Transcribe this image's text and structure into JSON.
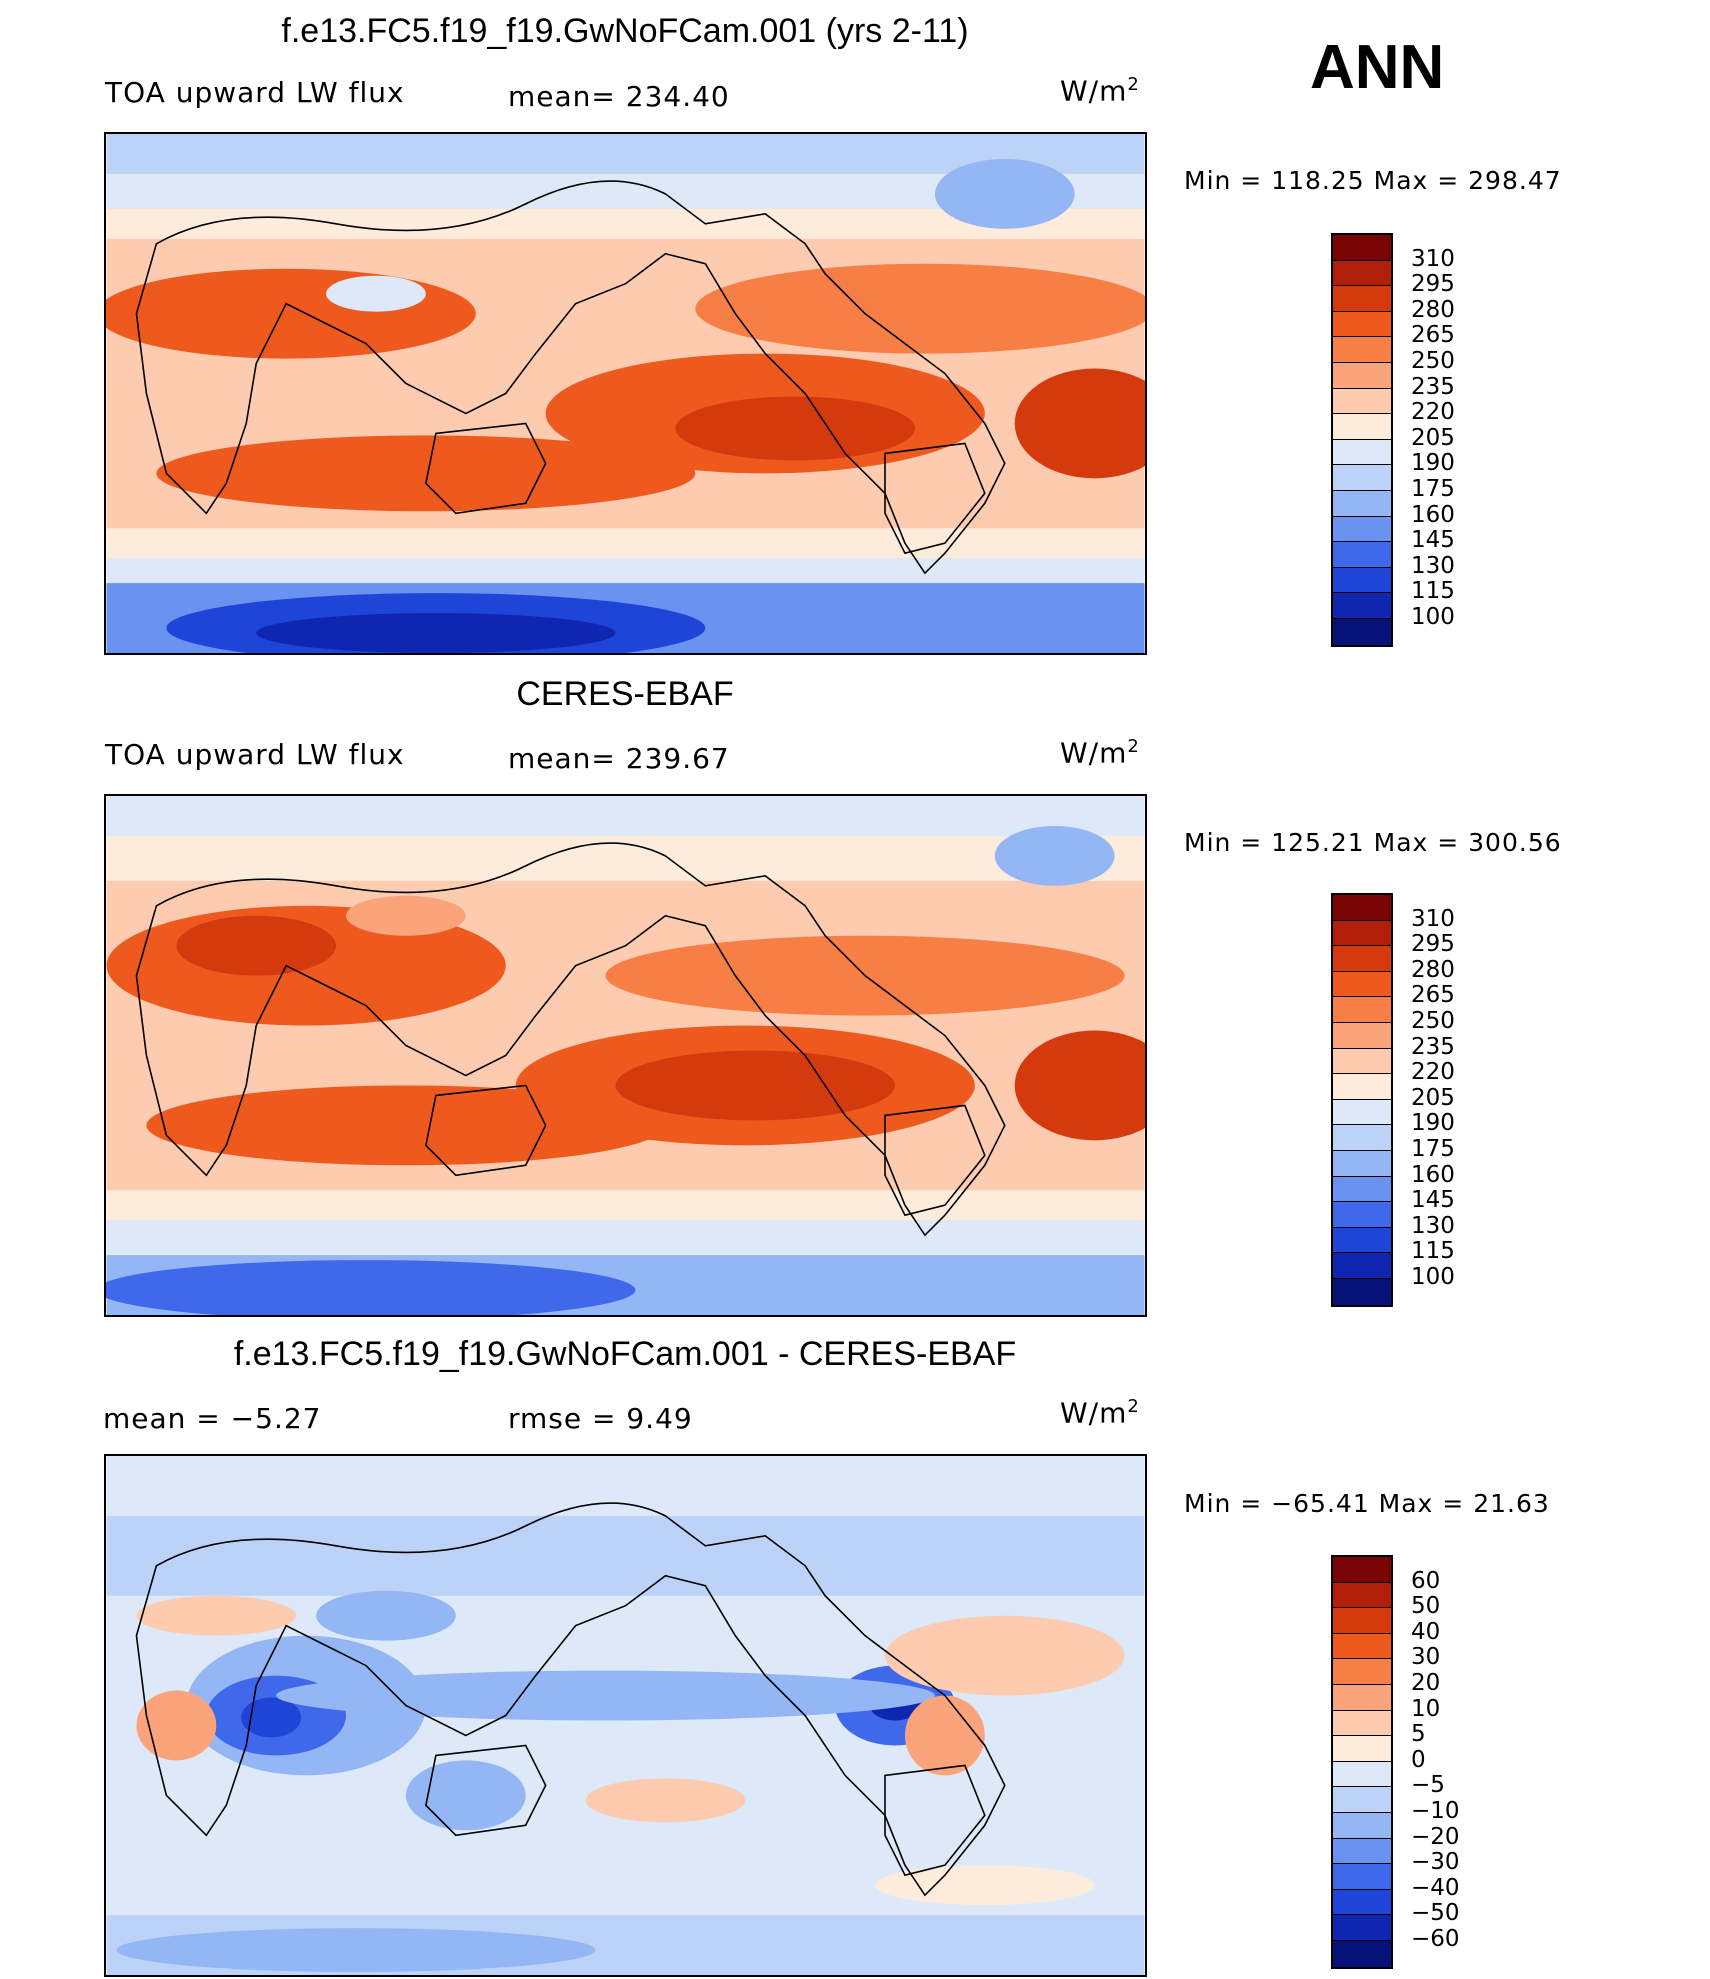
{
  "season": "ANN",
  "units_base": "W/m",
  "units_exp": "2",
  "panels": [
    {
      "title": "f.e13.FC5.f19_f19.GwNoFCam.001 (yrs 2-11)",
      "left_label": "TOA upward LW flux",
      "mid_label": "mean=  234.40",
      "minmax": "Min  =  118.25  Max  =  298.47",
      "scale": "abs"
    },
    {
      "title": "CERES-EBAF",
      "left_label": "TOA upward LW flux",
      "mid_label": "mean=  239.67",
      "minmax": "Min  =  125.21  Max  =  300.56",
      "scale": "abs"
    },
    {
      "title": "f.e13.FC5.f19_f19.GwNoFCam.001 - CERES-EBAF",
      "left_label": "mean  =    −5.27",
      "mid_label": "rmse  =     9.49",
      "minmax": "Min  =  −65.41  Max  =    21.63",
      "scale": "diff"
    }
  ],
  "colorbars": {
    "abs": {
      "labels": [
        "310",
        "295",
        "280",
        "265",
        "250",
        "235",
        "220",
        "205",
        "190",
        "175",
        "160",
        "145",
        "130",
        "115",
        "100"
      ],
      "colors": [
        "#7a0403",
        "#b11f0a",
        "#d53a0e",
        "#ee5a1e",
        "#f77f45",
        "#fba47c",
        "#fdcbb0",
        "#fdecdc",
        "#dde9f8",
        "#bcd3f7",
        "#94b6f5",
        "#6a92f0",
        "#3f69ea",
        "#1f44d8",
        "#0e26b0",
        "#061277"
      ]
    },
    "diff": {
      "labels": [
        "60",
        "50",
        "40",
        "30",
        "20",
        "10",
        "5",
        "0",
        "−5",
        "−10",
        "−20",
        "−30",
        "−40",
        "−50",
        "−60"
      ],
      "colors": [
        "#7a0403",
        "#b11f0a",
        "#d53a0e",
        "#ee5a1e",
        "#f77f45",
        "#fba47c",
        "#fdcbb0",
        "#fdecdc",
        "#dde9f8",
        "#bcd3f7",
        "#94b6f5",
        "#6a92f0",
        "#3f69ea",
        "#1f44d8",
        "#0e26b0",
        "#061277"
      ]
    }
  }
}
